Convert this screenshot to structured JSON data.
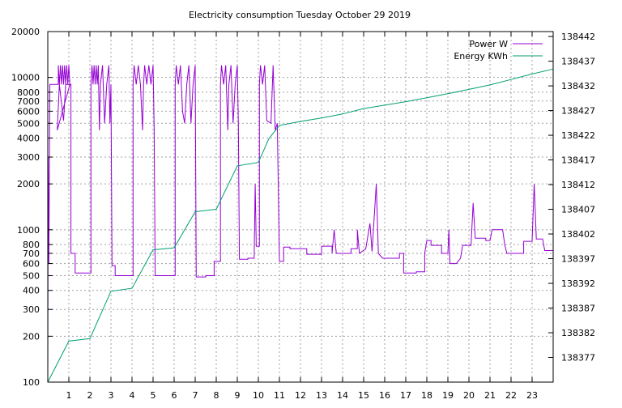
{
  "chart_data": {
    "type": "line",
    "title": "Electricity consumption Tuesday October 29 2019",
    "xlabel": "",
    "ylabel": "",
    "y2label": "",
    "xlim": [
      0,
      24
    ],
    "ylim": [
      100,
      20000
    ],
    "y2lim": [
      138372,
      138443
    ],
    "y_scale": "log",
    "grid": true,
    "legend_position": "top-right",
    "x_ticks": [
      1,
      2,
      3,
      4,
      5,
      6,
      7,
      8,
      9,
      10,
      11,
      12,
      13,
      14,
      15,
      16,
      17,
      18,
      19,
      20,
      21,
      22,
      23
    ],
    "y_ticks": [
      {
        "v": 100,
        "label": "100"
      },
      {
        "v": 200,
        "label": "200"
      },
      {
        "v": 300,
        "label": "300"
      },
      {
        "v": 400,
        "label": "400"
      },
      {
        "v": 500,
        "label": "500"
      },
      {
        "v": 600,
        "label": "600"
      },
      {
        "v": 700,
        "label": "700"
      },
      {
        "v": 800,
        "label": "800"
      },
      {
        "v": 1000,
        "label": "1000"
      },
      {
        "v": 2000,
        "label": "2000"
      },
      {
        "v": 3000,
        "label": "3000"
      },
      {
        "v": 4000,
        "label": "4000"
      },
      {
        "v": 5000,
        "label": "5000"
      },
      {
        "v": 6000,
        "label": "6000"
      },
      {
        "v": 7000,
        "label": "7000"
      },
      {
        "v": 8000,
        "label": "8000"
      },
      {
        "v": 10000,
        "label": "10000"
      },
      {
        "v": 20000,
        "label": "20000"
      }
    ],
    "y2_ticks": [
      138377,
      138382,
      138387,
      138392,
      138397,
      138402,
      138407,
      138412,
      138417,
      138422,
      138427,
      138432,
      138437,
      138442
    ],
    "series": [
      {
        "name": "Power W",
        "axis": "y",
        "color": "#9400d3",
        "points": [
          [
            0,
            100
          ],
          [
            0.02,
            3000
          ],
          [
            0.05,
            600
          ],
          [
            0.1,
            9000
          ],
          [
            0.5,
            9000
          ],
          [
            0.5,
            12000
          ],
          [
            0.55,
            9000
          ],
          [
            0.6,
            12000
          ],
          [
            0.65,
            9000
          ],
          [
            0.7,
            12000
          ],
          [
            0.75,
            9000
          ],
          [
            0.8,
            12000
          ],
          [
            0.85,
            9000
          ],
          [
            0.9,
            12000
          ],
          [
            0.95,
            9000
          ],
          [
            1.0,
            12000
          ],
          [
            1.05,
            9000
          ],
          [
            0.45,
            4500
          ],
          [
            0.55,
            9000
          ],
          [
            0.75,
            5200
          ],
          [
            0.85,
            9000
          ],
          [
            1.1,
            9000
          ],
          [
            1.1,
            700
          ],
          [
            1.3,
            700
          ],
          [
            1.3,
            520
          ],
          [
            2.05,
            520
          ],
          [
            2.05,
            9000
          ],
          [
            2.1,
            12000
          ],
          [
            2.15,
            9000
          ],
          [
            2.2,
            12000
          ],
          [
            2.25,
            9000
          ],
          [
            2.3,
            12000
          ],
          [
            2.35,
            9000
          ],
          [
            2.4,
            12000
          ],
          [
            2.45,
            4500
          ],
          [
            2.5,
            9000
          ],
          [
            2.6,
            12000
          ],
          [
            2.7,
            5000
          ],
          [
            2.8,
            9000
          ],
          [
            2.9,
            12000
          ],
          [
            2.95,
            5000
          ],
          [
            3.0,
            9000
          ],
          [
            3.05,
            580
          ],
          [
            3.2,
            580
          ],
          [
            3.2,
            500
          ],
          [
            4.05,
            500
          ],
          [
            4.05,
            9000
          ],
          [
            4.1,
            12000
          ],
          [
            4.2,
            9000
          ],
          [
            4.3,
            12000
          ],
          [
            4.4,
            9000
          ],
          [
            4.5,
            4500
          ],
          [
            4.55,
            9000
          ],
          [
            4.6,
            12000
          ],
          [
            4.7,
            9000
          ],
          [
            4.8,
            12000
          ],
          [
            4.9,
            9000
          ],
          [
            5.0,
            12000
          ],
          [
            5.05,
            4800
          ],
          [
            5.1,
            500
          ],
          [
            6.05,
            500
          ],
          [
            6.05,
            9000
          ],
          [
            6.1,
            12000
          ],
          [
            6.2,
            9000
          ],
          [
            6.3,
            12000
          ],
          [
            6.4,
            6000
          ],
          [
            6.5,
            5000
          ],
          [
            6.6,
            9000
          ],
          [
            6.7,
            12000
          ],
          [
            6.8,
            5000
          ],
          [
            6.9,
            9000
          ],
          [
            7.0,
            12000
          ],
          [
            7.05,
            490
          ],
          [
            7.5,
            490
          ],
          [
            7.5,
            500
          ],
          [
            7.9,
            500
          ],
          [
            7.9,
            620
          ],
          [
            8.2,
            620
          ],
          [
            8.2,
            9000
          ],
          [
            8.25,
            12000
          ],
          [
            8.35,
            9000
          ],
          [
            8.45,
            12000
          ],
          [
            8.55,
            4500
          ],
          [
            8.6,
            9000
          ],
          [
            8.7,
            12000
          ],
          [
            8.8,
            5000
          ],
          [
            8.9,
            9000
          ],
          [
            9.0,
            12000
          ],
          [
            9.05,
            5000
          ],
          [
            9.1,
            640
          ],
          [
            9.5,
            640
          ],
          [
            9.5,
            650
          ],
          [
            9.8,
            650
          ],
          [
            9.85,
            2000
          ],
          [
            9.9,
            780
          ],
          [
            10.05,
            780
          ],
          [
            10.05,
            9000
          ],
          [
            10.1,
            12000
          ],
          [
            10.2,
            9000
          ],
          [
            10.3,
            12000
          ],
          [
            10.4,
            5200
          ],
          [
            10.6,
            5000
          ],
          [
            10.7,
            12000
          ],
          [
            10.8,
            4500
          ],
          [
            10.9,
            5000
          ],
          [
            11.0,
            620
          ],
          [
            11.2,
            620
          ],
          [
            11.2,
            770
          ],
          [
            11.5,
            770
          ],
          [
            11.5,
            750
          ],
          [
            12.3,
            750
          ],
          [
            12.3,
            690
          ],
          [
            13.0,
            690
          ],
          [
            13.0,
            780
          ],
          [
            13.5,
            780
          ],
          [
            13.5,
            700
          ],
          [
            13.6,
            1000
          ],
          [
            13.7,
            700
          ],
          [
            14.4,
            700
          ],
          [
            14.4,
            750
          ],
          [
            14.7,
            750
          ],
          [
            14.7,
            1000
          ],
          [
            14.8,
            700
          ],
          [
            15.1,
            750
          ],
          [
            15.3,
            1100
          ],
          [
            15.4,
            720
          ],
          [
            15.6,
            2000
          ],
          [
            15.7,
            700
          ],
          [
            15.9,
            650
          ],
          [
            16.7,
            650
          ],
          [
            16.7,
            700
          ],
          [
            16.9,
            700
          ],
          [
            16.9,
            520
          ],
          [
            17.5,
            520
          ],
          [
            17.5,
            530
          ],
          [
            17.9,
            530
          ],
          [
            17.9,
            700
          ],
          [
            18.0,
            850
          ],
          [
            18.2,
            850
          ],
          [
            18.2,
            790
          ],
          [
            18.7,
            790
          ],
          [
            18.7,
            700
          ],
          [
            19.0,
            700
          ],
          [
            19.05,
            1000
          ],
          [
            19.1,
            600
          ],
          [
            19.4,
            600
          ],
          [
            19.6,
            650
          ],
          [
            19.7,
            790
          ],
          [
            20.1,
            790
          ],
          [
            20.2,
            1500
          ],
          [
            20.3,
            880
          ],
          [
            20.8,
            880
          ],
          [
            20.8,
            850
          ],
          [
            21.0,
            850
          ],
          [
            21.1,
            1000
          ],
          [
            21.6,
            1000
          ],
          [
            21.7,
            800
          ],
          [
            21.8,
            700
          ],
          [
            22.6,
            700
          ],
          [
            22.6,
            840
          ],
          [
            23.0,
            840
          ],
          [
            23.1,
            2000
          ],
          [
            23.2,
            870
          ],
          [
            23.5,
            870
          ],
          [
            23.6,
            730
          ],
          [
            24,
            730
          ]
        ]
      },
      {
        "name": "Energy KWh",
        "axis": "y2",
        "color": "#009e73",
        "points": [
          [
            0,
            138372
          ],
          [
            1.0,
            138380.3
          ],
          [
            2.0,
            138380.8
          ],
          [
            3.0,
            138390.4
          ],
          [
            4.0,
            138391
          ],
          [
            5.0,
            138398.8
          ],
          [
            6.0,
            138399.2
          ],
          [
            7.0,
            138406.5
          ],
          [
            8.0,
            138407
          ],
          [
            9.0,
            138415.8
          ],
          [
            10.0,
            138416.5
          ],
          [
            10.5,
            138421.3
          ],
          [
            11.0,
            138424
          ],
          [
            12.0,
            138424.8
          ],
          [
            13.0,
            138425.5
          ],
          [
            14.0,
            138426.3
          ],
          [
            15.0,
            138427.4
          ],
          [
            16.0,
            138428.1
          ],
          [
            17.0,
            138428.8
          ],
          [
            18.0,
            138429.6
          ],
          [
            19.0,
            138430.4
          ],
          [
            20.0,
            138431.3
          ],
          [
            21.0,
            138432.2
          ],
          [
            22.0,
            138433.3
          ],
          [
            23.0,
            138434.4
          ],
          [
            24,
            138435.4
          ]
        ]
      }
    ]
  }
}
